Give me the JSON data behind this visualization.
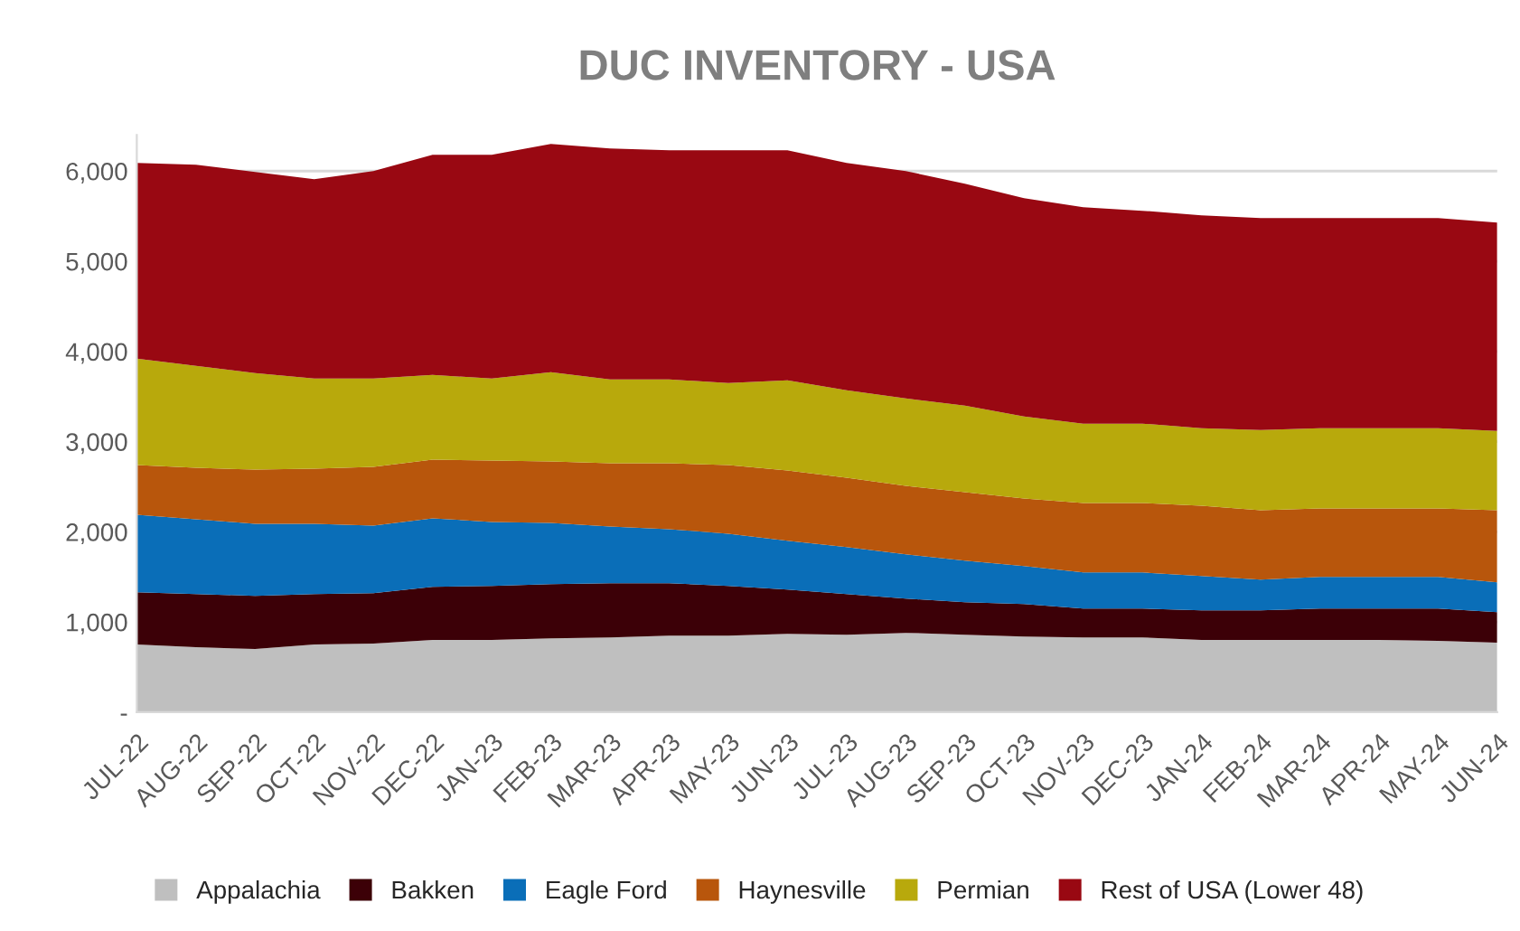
{
  "chart_data": {
    "type": "area",
    "stacked": true,
    "title": "DUC INVENTORY - USA",
    "categories": [
      "JUL-22",
      "AUG-22",
      "SEP-22",
      "OCT-22",
      "NOV-22",
      "DEC-22",
      "JAN-23",
      "FEB-23",
      "MAR-23",
      "APR-23",
      "MAY-23",
      "JUN-23",
      "JUL-23",
      "AUG-23",
      "SEP-23",
      "OCT-23",
      "NOV-23",
      "DEC-23",
      "JAN-24",
      "FEB-24",
      "MAR-24",
      "APR-24",
      "MAY-24",
      "JUN-24"
    ],
    "series": [
      {
        "name": "Appalachia",
        "color": "#bfbfbf",
        "values": [
          750,
          720,
          700,
          750,
          760,
          800,
          800,
          820,
          830,
          850,
          850,
          870,
          860,
          880,
          860,
          840,
          830,
          830,
          800,
          800,
          800,
          800,
          790,
          770
        ]
      },
      {
        "name": "Bakken",
        "color": "#3c0007",
        "values": [
          580,
          590,
          590,
          560,
          560,
          590,
          600,
          600,
          600,
          580,
          550,
          490,
          450,
          380,
          360,
          360,
          320,
          320,
          330,
          330,
          350,
          350,
          360,
          340
        ]
      },
      {
        "name": "Eagle Ford",
        "color": "#0a6eb8",
        "values": [
          860,
          830,
          800,
          780,
          750,
          760,
          710,
          680,
          630,
          600,
          580,
          540,
          520,
          490,
          460,
          420,
          400,
          400,
          380,
          340,
          350,
          350,
          350,
          330
        ]
      },
      {
        "name": "Haynesville",
        "color": "#b8560c",
        "values": [
          550,
          570,
          600,
          610,
          650,
          650,
          680,
          680,
          700,
          730,
          760,
          780,
          770,
          760,
          760,
          750,
          770,
          770,
          780,
          770,
          760,
          760,
          760,
          800
        ]
      },
      {
        "name": "Permian",
        "color": "#b8a90c",
        "values": [
          1180,
          1130,
          1070,
          1000,
          980,
          940,
          910,
          990,
          930,
          930,
          910,
          1000,
          970,
          970,
          960,
          910,
          880,
          880,
          860,
          890,
          890,
          890,
          890,
          880
        ]
      },
      {
        "name": "Rest of USA (Lower 48)",
        "color": "#990812",
        "values": [
          2170,
          2230,
          2230,
          2210,
          2300,
          2440,
          2480,
          2530,
          2560,
          2540,
          2580,
          2550,
          2520,
          2520,
          2460,
          2420,
          2400,
          2360,
          2360,
          2350,
          2330,
          2330,
          2330,
          2310
        ]
      }
    ],
    "ylim": [
      0,
      6400
    ],
    "yticks": [
      {
        "value": 0,
        "label": "-"
      },
      {
        "value": 1000,
        "label": "1,000"
      },
      {
        "value": 2000,
        "label": "2,000"
      },
      {
        "value": 3000,
        "label": "3,000"
      },
      {
        "value": 4000,
        "label": "4,000"
      },
      {
        "value": 5000,
        "label": "5,000"
      },
      {
        "value": 6000,
        "label": "6,000"
      }
    ],
    "grid": "y",
    "legend": "bottom"
  }
}
